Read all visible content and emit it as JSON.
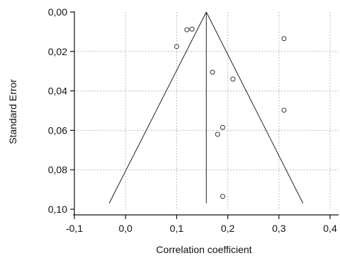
{
  "chart_data": {
    "type": "scatter",
    "title": "",
    "xlabel": "Correlation coefficient",
    "ylabel": "Standard Error",
    "xlim": [
      -0.1,
      0.4
    ],
    "ylim": [
      0.1,
      0.0
    ],
    "y_inverted": true,
    "grid": true,
    "x_ticks": [
      {
        "value": -0.1,
        "label": "-0,1"
      },
      {
        "value": 0.0,
        "label": "0,0"
      },
      {
        "value": 0.1,
        "label": "0,1"
      },
      {
        "value": 0.2,
        "label": "0,2"
      },
      {
        "value": 0.3,
        "label": "0,3"
      },
      {
        "value": 0.4,
        "label": "0,4"
      }
    ],
    "y_ticks": [
      {
        "value": 0.0,
        "label": "0,00"
      },
      {
        "value": 0.02,
        "label": "0,02"
      },
      {
        "value": 0.04,
        "label": "0,04"
      },
      {
        "value": 0.06,
        "label": "0,06"
      },
      {
        "value": 0.08,
        "label": "0,08"
      },
      {
        "value": 0.1,
        "label": "0,10"
      }
    ],
    "points": [
      {
        "x": 0.1,
        "y": 0.0175
      },
      {
        "x": 0.12,
        "y": 0.009
      },
      {
        "x": 0.13,
        "y": 0.0087
      },
      {
        "x": 0.31,
        "y": 0.0135
      },
      {
        "x": 0.17,
        "y": 0.0305
      },
      {
        "x": 0.21,
        "y": 0.034
      },
      {
        "x": 0.31,
        "y": 0.0498
      },
      {
        "x": 0.19,
        "y": 0.0585
      },
      {
        "x": 0.18,
        "y": 0.062
      },
      {
        "x": 0.19,
        "y": 0.0935
      }
    ],
    "funnel": {
      "center": 0.158,
      "apex_se": 0.0,
      "base_se": 0.097,
      "left_base_x": -0.032,
      "right_base_x": 0.347
    },
    "colors": {
      "axis": "#111111",
      "grid": "#bdbdbd",
      "point": "#333333",
      "line": "#222222"
    }
  }
}
